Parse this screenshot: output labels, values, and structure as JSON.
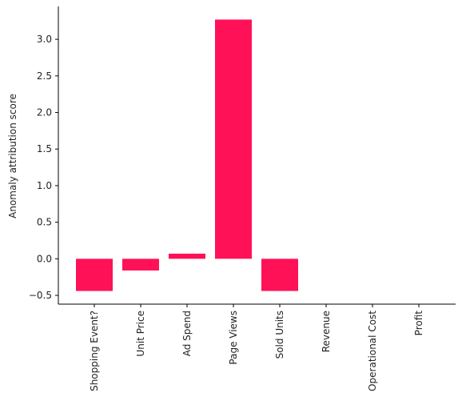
{
  "chart_data": {
    "type": "bar",
    "title": "",
    "xlabel": "",
    "ylabel": "Anomaly attribution score",
    "categories": [
      "Shopping Event?",
      "Unit Price",
      "Ad Spend",
      "Page Views",
      "Sold Units",
      "Revenue",
      "Operational Cost",
      "Profit"
    ],
    "values": [
      -0.44,
      -0.16,
      0.07,
      3.27,
      -0.44,
      0,
      0,
      0
    ],
    "ylim": [
      -0.62,
      3.45
    ],
    "yticks": [
      -0.5,
      0.0,
      0.5,
      1.0,
      1.5,
      2.0,
      2.5,
      3.0
    ],
    "ytick_labels": [
      "−0.5",
      "0.0",
      "0.5",
      "1.0",
      "1.5",
      "2.0",
      "2.5",
      "3.0"
    ],
    "grid": false,
    "legend": "none",
    "bar_color": "#ff1158"
  }
}
